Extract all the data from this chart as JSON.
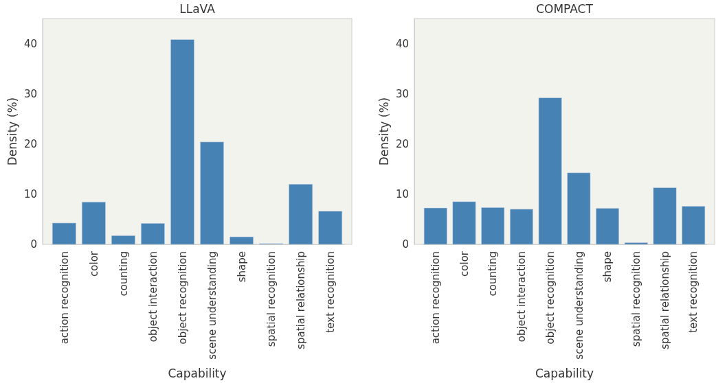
{
  "chart_data": [
    {
      "type": "bar",
      "title": "LLaVA",
      "xlabel": "Capability",
      "ylabel": "Density (%)",
      "categories": [
        "action recognition",
        "color",
        "counting",
        "object interaction",
        "object recognition",
        "scene understanding",
        "shape",
        "spatial recognition",
        "spatial relationship",
        "text recognition"
      ],
      "values": [
        4.25,
        8.45,
        1.75,
        4.2,
        40.8,
        20.4,
        1.5,
        0.15,
        12.0,
        6.6
      ],
      "color": "#4682b4",
      "ylim": [
        0,
        45
      ],
      "yticks": [
        0,
        10,
        20,
        30,
        40
      ],
      "grid": false
    },
    {
      "type": "bar",
      "title": "COMPACT",
      "xlabel": "Capability",
      "ylabel": "Density (%)",
      "categories": [
        "action recognition",
        "color",
        "counting",
        "object interaction",
        "object recognition",
        "scene understanding",
        "shape",
        "spatial recognition",
        "spatial relationship",
        "text recognition"
      ],
      "values": [
        7.25,
        8.5,
        7.35,
        7.0,
        29.2,
        14.25,
        7.2,
        0.35,
        11.3,
        7.6
      ],
      "color": "#4682b4",
      "ylim": [
        0,
        45
      ],
      "yticks": [
        0,
        10,
        20,
        30,
        40
      ],
      "grid": false
    }
  ]
}
